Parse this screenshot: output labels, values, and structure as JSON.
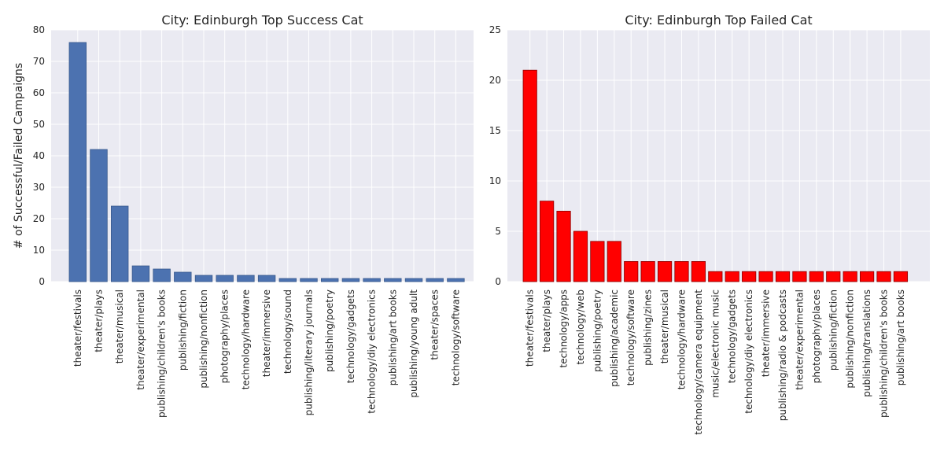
{
  "chart_data": [
    {
      "type": "bar",
      "title": "City: Edinburgh Top Success Cat",
      "xlabel": "",
      "ylabel": "# of Successful/Failed Campaigns",
      "ylim": [
        0,
        80
      ],
      "yticks": [
        0,
        10,
        20,
        30,
        40,
        50,
        60,
        70,
        80
      ],
      "grid": true,
      "legend": "none",
      "bar_color": "#4c72b0",
      "categories": [
        "theater/festivals",
        "theater/plays",
        "theater/musical",
        "theater/experimental",
        "publishing/children's books",
        "publishing/fiction",
        "publishing/nonfiction",
        "photography/places",
        "technology/hardware",
        "theater/immersive",
        "technology/sound",
        "publishing/literary journals",
        "publishing/poetry",
        "technology/gadgets",
        "technology/diy electronics",
        "publishing/art books",
        "publishing/young adult",
        "theater/spaces",
        "technology/software"
      ],
      "values": [
        76,
        42,
        24,
        5,
        4,
        3,
        2,
        2,
        2,
        2,
        1,
        1,
        1,
        1,
        1,
        1,
        1,
        1,
        1
      ]
    },
    {
      "type": "bar",
      "title": "City: Edinburgh Top Failed Cat",
      "xlabel": "",
      "ylabel": "",
      "ylim": [
        0,
        25
      ],
      "yticks": [
        0,
        5,
        10,
        15,
        20,
        25
      ],
      "grid": true,
      "legend": "none",
      "bar_color": "#ff0000",
      "categories": [
        "theater/festivals",
        "theater/plays",
        "technology/apps",
        "technology/web",
        "publishing/poetry",
        "publishing/academic",
        "technology/software",
        "publishing/zines",
        "theater/musical",
        "technology/hardware",
        "technology/camera equipment",
        "music/electronic music",
        "technology/gadgets",
        "technology/diy electronics",
        "theater/immersive",
        "publishing/radio & podcasts",
        "theater/experimental",
        "photography/places",
        "publishing/fiction",
        "publishing/nonfiction",
        "publishing/translations",
        "publishing/children's books",
        "publishing/art books"
      ],
      "values": [
        21,
        8,
        7,
        5,
        4,
        4,
        2,
        2,
        2,
        2,
        2,
        1,
        1,
        1,
        1,
        1,
        1,
        1,
        1,
        1,
        1,
        1,
        1
      ]
    }
  ]
}
